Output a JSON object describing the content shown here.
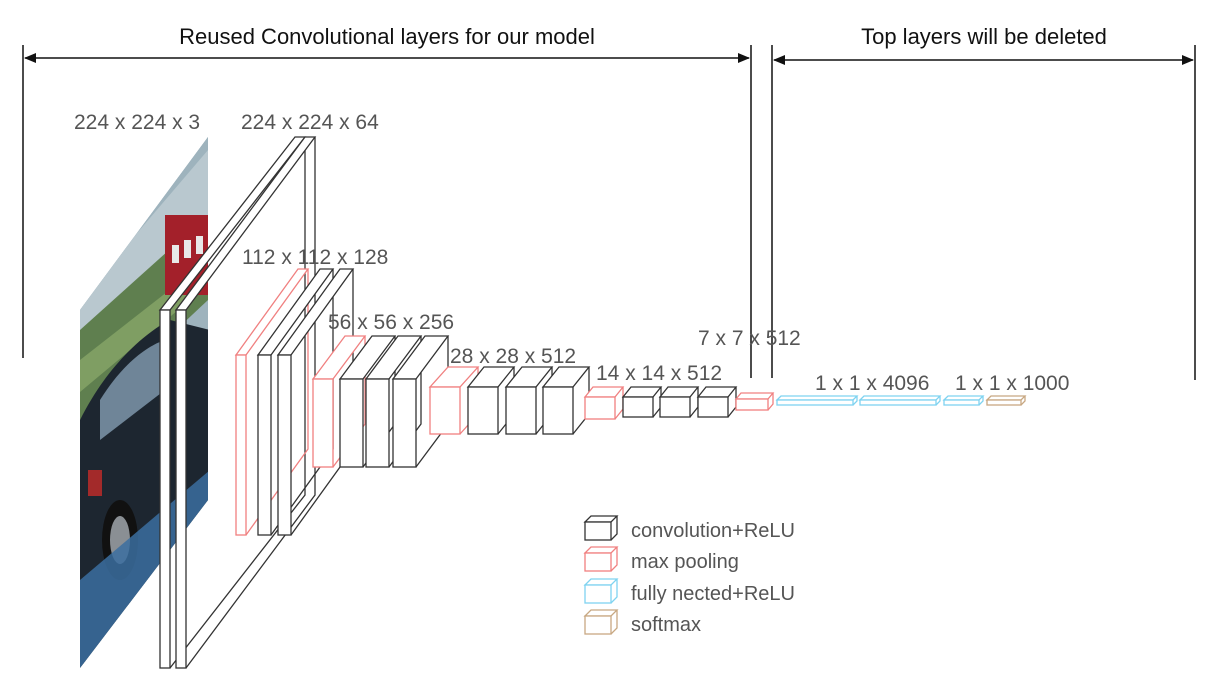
{
  "header": {
    "reused_label": "Reused Convolutional layers for our model",
    "top_label": "Top layers will be deleted"
  },
  "dimensions": {
    "d224x3": "224 x 224 x 3",
    "d224x64": "224 x 224 x 64",
    "d112": "112 x 112 x 128",
    "d56": "56 x 56 x 256",
    "d28": "28 x 28 x 512",
    "d14": "14 x 14 x 512",
    "d7": "7 x 7 x 512",
    "fc4096": "1 x 1 x 4096",
    "fc1000": "1 x 1 x 1000"
  },
  "legend": {
    "conv": "convolution+ReLU",
    "pool": "max pooling",
    "fc": "fully nected+ReLU",
    "softmax": "softmax"
  },
  "colors": {
    "conv": "#333333",
    "pool": "#f08080",
    "fc": "#7fd3f0",
    "softmax": "#c8a882",
    "arrow": "#111111"
  },
  "input_image": {
    "icon": "car-photo-icon"
  }
}
